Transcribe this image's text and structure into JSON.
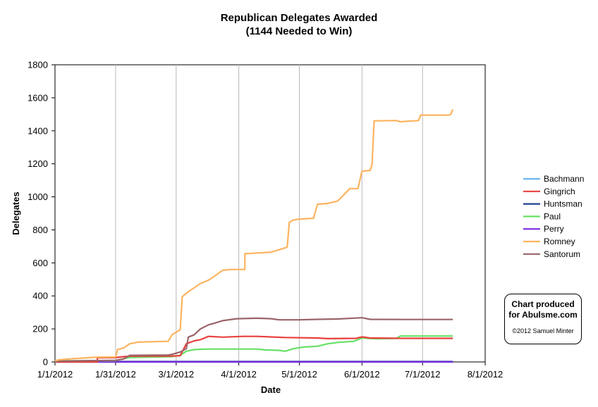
{
  "chart_data": {
    "type": "line",
    "title": "Republican Delegates Awarded",
    "subtitle": "(1144 Needed to Win)",
    "xlabel": "Date",
    "ylabel": "Delegates",
    "ylim": [
      0,
      1800
    ],
    "yticks": [
      0,
      200,
      400,
      600,
      800,
      1000,
      1200,
      1400,
      1600,
      1800
    ],
    "xlim": [
      "2012-01-01",
      "2012-08-01"
    ],
    "xticks": [
      {
        "date": "2012-01-01",
        "label": "1/1/2012"
      },
      {
        "date": "2012-01-31",
        "label": "1/31/2012"
      },
      {
        "date": "2012-03-01",
        "label": "3/1/2012"
      },
      {
        "date": "2012-04-01",
        "label": "4/1/2012"
      },
      {
        "date": "2012-05-01",
        "label": "5/1/2012"
      },
      {
        "date": "2012-06-01",
        "label": "6/1/2012"
      },
      {
        "date": "2012-07-01",
        "label": "7/1/2012"
      },
      {
        "date": "2012-08-01",
        "label": "8/1/2012"
      }
    ],
    "grid": "vertical",
    "legend_position": "right",
    "series": [
      {
        "name": "Bachmann",
        "color": "#6CB4F0",
        "points": [
          [
            "2012-01-01",
            0
          ],
          [
            "2012-07-16",
            0
          ]
        ]
      },
      {
        "name": "Gingrich",
        "color": "#E8403E",
        "points": [
          [
            "2012-01-01",
            0
          ],
          [
            "2012-01-22",
            0
          ],
          [
            "2012-01-22",
            25
          ],
          [
            "2012-01-31",
            26
          ],
          [
            "2012-02-04",
            32
          ],
          [
            "2012-02-07",
            35
          ],
          [
            "2012-02-28",
            36
          ],
          [
            "2012-03-03",
            38
          ],
          [
            "2012-03-06",
            110
          ],
          [
            "2012-03-10",
            128
          ],
          [
            "2012-03-13",
            135
          ],
          [
            "2012-03-17",
            155
          ],
          [
            "2012-03-24",
            150
          ],
          [
            "2012-04-03",
            155
          ],
          [
            "2012-04-10",
            155
          ],
          [
            "2012-04-24",
            148
          ],
          [
            "2012-05-10",
            145
          ],
          [
            "2012-05-15",
            141
          ],
          [
            "2012-05-29",
            143
          ],
          [
            "2012-06-01",
            152
          ],
          [
            "2012-06-05",
            145
          ],
          [
            "2012-06-20",
            143
          ],
          [
            "2012-07-16",
            143
          ]
        ]
      },
      {
        "name": "Huntsman",
        "color": "#1F3F8F",
        "points": [
          [
            "2012-01-01",
            2
          ],
          [
            "2012-01-16",
            2
          ],
          [
            "2012-07-16",
            2
          ]
        ]
      },
      {
        "name": "Paul",
        "color": "#66E066",
        "points": [
          [
            "2012-01-01",
            0
          ],
          [
            "2012-01-03",
            7
          ],
          [
            "2012-01-31",
            8
          ],
          [
            "2012-02-04",
            20
          ],
          [
            "2012-02-07",
            27
          ],
          [
            "2012-02-28",
            32
          ],
          [
            "2012-03-03",
            40
          ],
          [
            "2012-03-06",
            65
          ],
          [
            "2012-03-10",
            75
          ],
          [
            "2012-03-17",
            78
          ],
          [
            "2012-04-10",
            78
          ],
          [
            "2012-04-14",
            73
          ],
          [
            "2012-04-21",
            70
          ],
          [
            "2012-04-24",
            65
          ],
          [
            "2012-04-28",
            80
          ],
          [
            "2012-05-03",
            90
          ],
          [
            "2012-05-10",
            95
          ],
          [
            "2012-05-15",
            110
          ],
          [
            "2012-05-20",
            118
          ],
          [
            "2012-05-28",
            125
          ],
          [
            "2012-06-01",
            145
          ],
          [
            "2012-06-08",
            140
          ],
          [
            "2012-06-18",
            142
          ],
          [
            "2012-06-20",
            157
          ],
          [
            "2012-07-16",
            157
          ]
        ]
      },
      {
        "name": "Perry",
        "color": "#7A2BE2",
        "points": [
          [
            "2012-01-01",
            0
          ],
          [
            "2012-07-16",
            0
          ]
        ]
      },
      {
        "name": "Romney",
        "color": "#FDB35E",
        "points": [
          [
            "2012-01-01",
            7
          ],
          [
            "2012-01-03",
            13
          ],
          [
            "2012-01-10",
            20
          ],
          [
            "2012-01-21",
            28
          ],
          [
            "2012-01-31",
            30
          ],
          [
            "2012-02-01",
            75
          ],
          [
            "2012-02-04",
            85
          ],
          [
            "2012-02-07",
            110
          ],
          [
            "2012-02-11",
            120
          ],
          [
            "2012-02-26",
            125
          ],
          [
            "2012-02-28",
            165
          ],
          [
            "2012-03-03",
            195
          ],
          [
            "2012-03-04",
            395
          ],
          [
            "2012-03-07",
            425
          ],
          [
            "2012-03-10",
            450
          ],
          [
            "2012-03-13",
            475
          ],
          [
            "2012-03-17",
            495
          ],
          [
            "2012-03-20",
            520
          ],
          [
            "2012-03-24",
            555
          ],
          [
            "2012-03-28",
            560
          ],
          [
            "2012-04-04",
            560
          ],
          [
            "2012-04-04",
            655
          ],
          [
            "2012-04-10",
            660
          ],
          [
            "2012-04-17",
            665
          ],
          [
            "2012-04-21",
            680
          ],
          [
            "2012-04-25",
            695
          ],
          [
            "2012-04-26",
            845
          ],
          [
            "2012-04-28",
            860
          ],
          [
            "2012-05-01",
            865
          ],
          [
            "2012-05-08",
            870
          ],
          [
            "2012-05-10",
            955
          ],
          [
            "2012-05-15",
            960
          ],
          [
            "2012-05-20",
            975
          ],
          [
            "2012-05-26",
            1050
          ],
          [
            "2012-05-30",
            1050
          ],
          [
            "2012-06-01",
            1155
          ],
          [
            "2012-06-05",
            1160
          ],
          [
            "2012-06-06",
            1195
          ],
          [
            "2012-06-07",
            1460
          ],
          [
            "2012-06-18",
            1462
          ],
          [
            "2012-06-20",
            1455
          ],
          [
            "2012-06-29",
            1462
          ],
          [
            "2012-06-30",
            1495
          ],
          [
            "2012-07-14",
            1495
          ],
          [
            "2012-07-15",
            1500
          ],
          [
            "2012-07-16",
            1530
          ]
        ]
      },
      {
        "name": "Santorum",
        "color": "#9A6468",
        "points": [
          [
            "2012-01-01",
            0
          ],
          [
            "2012-01-03",
            5
          ],
          [
            "2012-01-31",
            10
          ],
          [
            "2012-02-04",
            18
          ],
          [
            "2012-02-07",
            40
          ],
          [
            "2012-02-26",
            42
          ],
          [
            "2012-02-28",
            46
          ],
          [
            "2012-03-03",
            60
          ],
          [
            "2012-03-06",
            80
          ],
          [
            "2012-03-07",
            150
          ],
          [
            "2012-03-10",
            165
          ],
          [
            "2012-03-13",
            200
          ],
          [
            "2012-03-17",
            225
          ],
          [
            "2012-03-20",
            235
          ],
          [
            "2012-03-24",
            250
          ],
          [
            "2012-03-31",
            262
          ],
          [
            "2012-04-10",
            265
          ],
          [
            "2012-04-17",
            262
          ],
          [
            "2012-04-21",
            255
          ],
          [
            "2012-05-01",
            255
          ],
          [
            "2012-05-10",
            258
          ],
          [
            "2012-05-20",
            260
          ],
          [
            "2012-06-01",
            268
          ],
          [
            "2012-06-05",
            258
          ],
          [
            "2012-06-20",
            257
          ],
          [
            "2012-07-16",
            257
          ]
        ]
      }
    ]
  },
  "credit": {
    "line1": "Chart produced",
    "line2": "for Abulsme.com",
    "line3": "©2012 Samuel Minter"
  }
}
